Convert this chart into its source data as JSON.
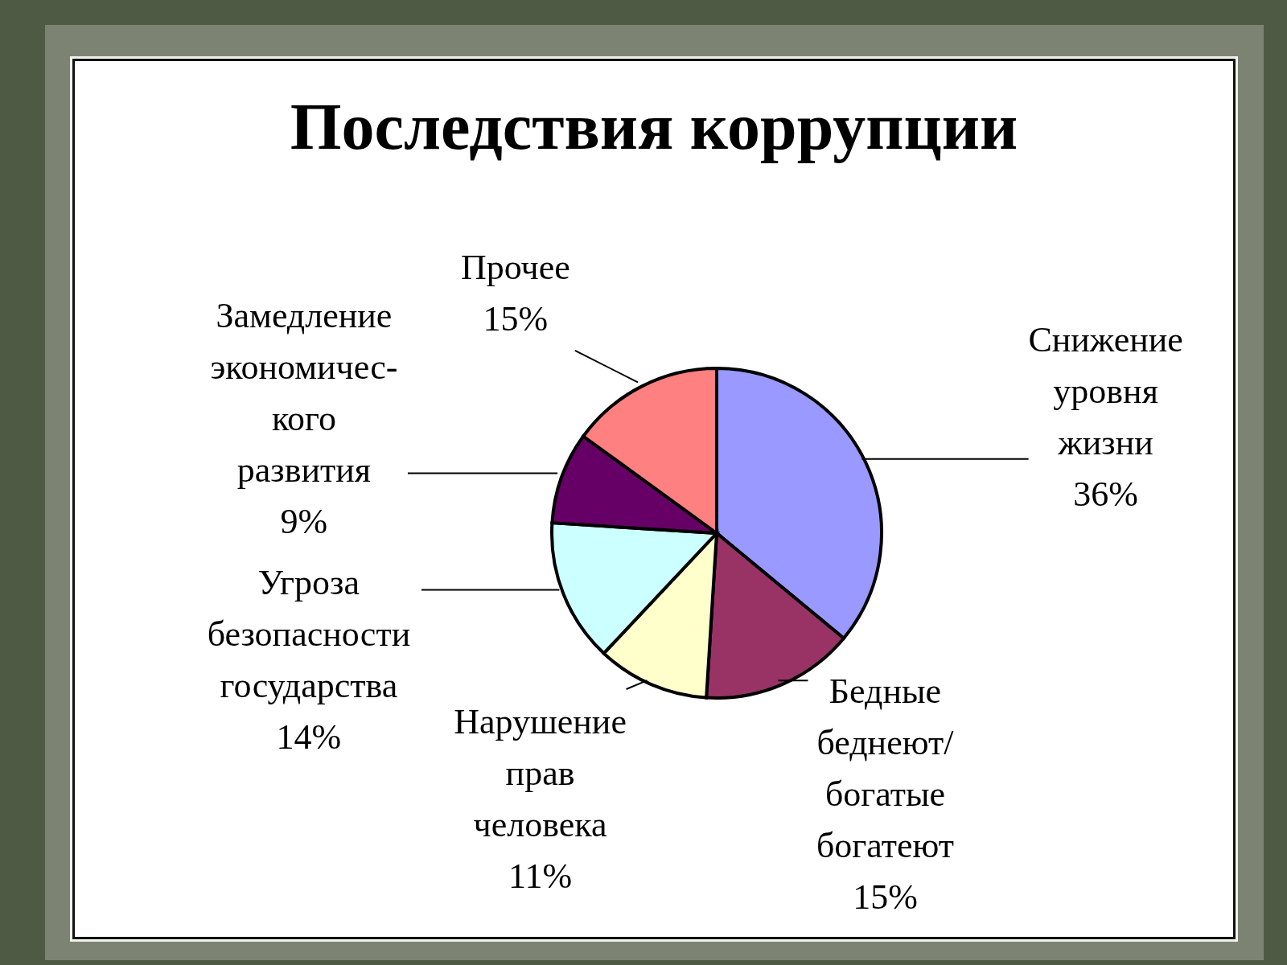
{
  "chart_data": {
    "type": "pie",
    "title": "Последствия коррупции",
    "categories": [
      "Снижение\nуровня\nжизни",
      "Бедные\nбеднеют/\nбогатые\nбогатеют",
      "Нарушение\nправ\nчеловека",
      "Угроза\nбезопасности\nгосударства",
      "Замедление\nэкономичес-\nкого\nразвития",
      "Прочее"
    ],
    "values": [
      36,
      15,
      11,
      14,
      9,
      15
    ],
    "colors": [
      "#9999ff",
      "#993366",
      "#ffffcc",
      "#ccffff",
      "#660066",
      "#ff8080"
    ],
    "value_labels": [
      "36%",
      "15%",
      "11%",
      "14%",
      "9%",
      "15%"
    ]
  }
}
